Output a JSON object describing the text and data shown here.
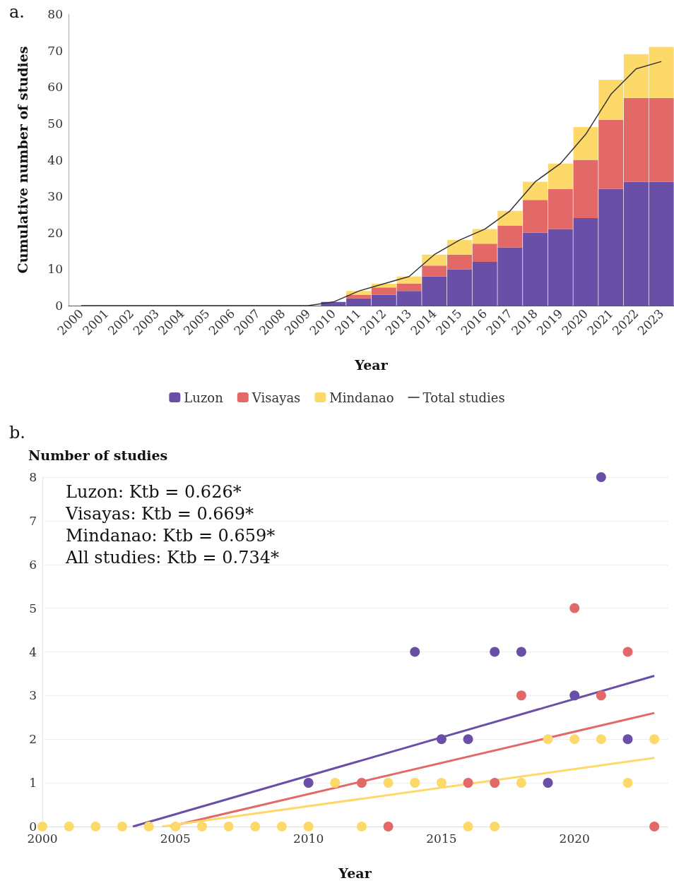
{
  "chart_data": [
    {
      "type": "bar",
      "title": "a.",
      "xlabel": "Year",
      "ylabel": "Cumulative number of studies",
      "stacked": true,
      "legend": "bottom",
      "grid": false,
      "marker": "none",
      "categories": [
        "2000",
        "2001",
        "2002",
        "2003",
        "2004",
        "2005",
        "2006",
        "2007",
        "2008",
        "2009",
        "2010",
        "2011",
        "2012",
        "2013",
        "2014",
        "2015",
        "2016",
        "2017",
        "2018",
        "2019",
        "2020",
        "2021",
        "2022",
        "2023"
      ],
      "ylim": [
        0,
        80
      ],
      "yticks": [
        0,
        10,
        20,
        30,
        40,
        50,
        60,
        70,
        80
      ],
      "series": [
        {
          "name": "Luzon",
          "color": "#6a4fa8",
          "values": [
            0,
            0,
            0,
            0,
            0,
            0,
            0,
            0,
            0,
            0,
            1,
            2,
            3,
            4,
            8,
            10,
            12,
            16,
            20,
            21,
            24,
            32,
            34,
            34
          ]
        },
        {
          "name": "Visayas",
          "color": "#e36868",
          "values": [
            0,
            0,
            0,
            0,
            0,
            0,
            0,
            0,
            0,
            0,
            0,
            1,
            2,
            2,
            3,
            4,
            5,
            6,
            9,
            11,
            16,
            19,
            23,
            23
          ]
        },
        {
          "name": "Mindanao",
          "color": "#fdd96a",
          "values": [
            0,
            0,
            0,
            0,
            0,
            0,
            0,
            0,
            0,
            0,
            0,
            1,
            1,
            2,
            3,
            4,
            4,
            4,
            5,
            7,
            9,
            11,
            12,
            14
          ]
        },
        {
          "name": "Total studies",
          "type": "line",
          "color": "#333333",
          "values": [
            0,
            0,
            0,
            0,
            0,
            0,
            0,
            0,
            0,
            0,
            1,
            4,
            6,
            8,
            14,
            18,
            21,
            26,
            34,
            39,
            47,
            58,
            65,
            67
          ]
        }
      ]
    },
    {
      "type": "scatter",
      "title": "b.",
      "xlabel": "Year",
      "ylabel": "Number of studies",
      "grid": "y",
      "marker": "circle",
      "x": [
        2000,
        2001,
        2002,
        2003,
        2004,
        2005,
        2006,
        2007,
        2008,
        2009,
        2010,
        2011,
        2012,
        2013,
        2014,
        2015,
        2016,
        2017,
        2018,
        2019,
        2020,
        2021,
        2022,
        2023
      ],
      "xlim": [
        2000,
        2023.5
      ],
      "xticks": [
        2000,
        2005,
        2010,
        2015,
        2020
      ],
      "ylim": [
        0,
        8
      ],
      "yticks": [
        0,
        1,
        2,
        3,
        4,
        5,
        6,
        7,
        8
      ],
      "annotations": [
        "Luzon: Ktb = 0.626*",
        "Visayas: Ktb = 0.669*",
        "Mindanao: Ktb = 0.659*",
        "All studies: Ktb = 0.734*"
      ],
      "series": [
        {
          "color": "#6a4fa8",
          "values": [
            null,
            null,
            null,
            null,
            null,
            null,
            null,
            null,
            null,
            null,
            1,
            null,
            null,
            null,
            4,
            2,
            2,
            4,
            4,
            1,
            3,
            8,
            2,
            null
          ]
        },
        {
          "color": "#e36868",
          "values": [
            null,
            null,
            null,
            null,
            null,
            null,
            null,
            null,
            null,
            null,
            null,
            null,
            1,
            0,
            null,
            null,
            1,
            1,
            3,
            null,
            5,
            3,
            4,
            0
          ]
        },
        {
          "color": "#fdd96a",
          "values": [
            0,
            0,
            0,
            0,
            0,
            0,
            0,
            0,
            0,
            0,
            0,
            1,
            0,
            1,
            1,
            1,
            0,
            0,
            1,
            2,
            2,
            2,
            1,
            2
          ]
        },
        {
          "type": "line",
          "marker": "none",
          "color": "#6a4fa8",
          "x": [
            2003.4,
            2023
          ],
          "values": [
            0,
            3.45
          ]
        },
        {
          "type": "line",
          "marker": "none",
          "color": "#e36868",
          "x": [
            2004.8,
            2023
          ],
          "values": [
            0,
            2.6
          ]
        },
        {
          "type": "line",
          "marker": "none",
          "color": "#fdd96a",
          "x": [
            2004.5,
            2023
          ],
          "values": [
            0,
            1.57
          ]
        }
      ]
    }
  ]
}
